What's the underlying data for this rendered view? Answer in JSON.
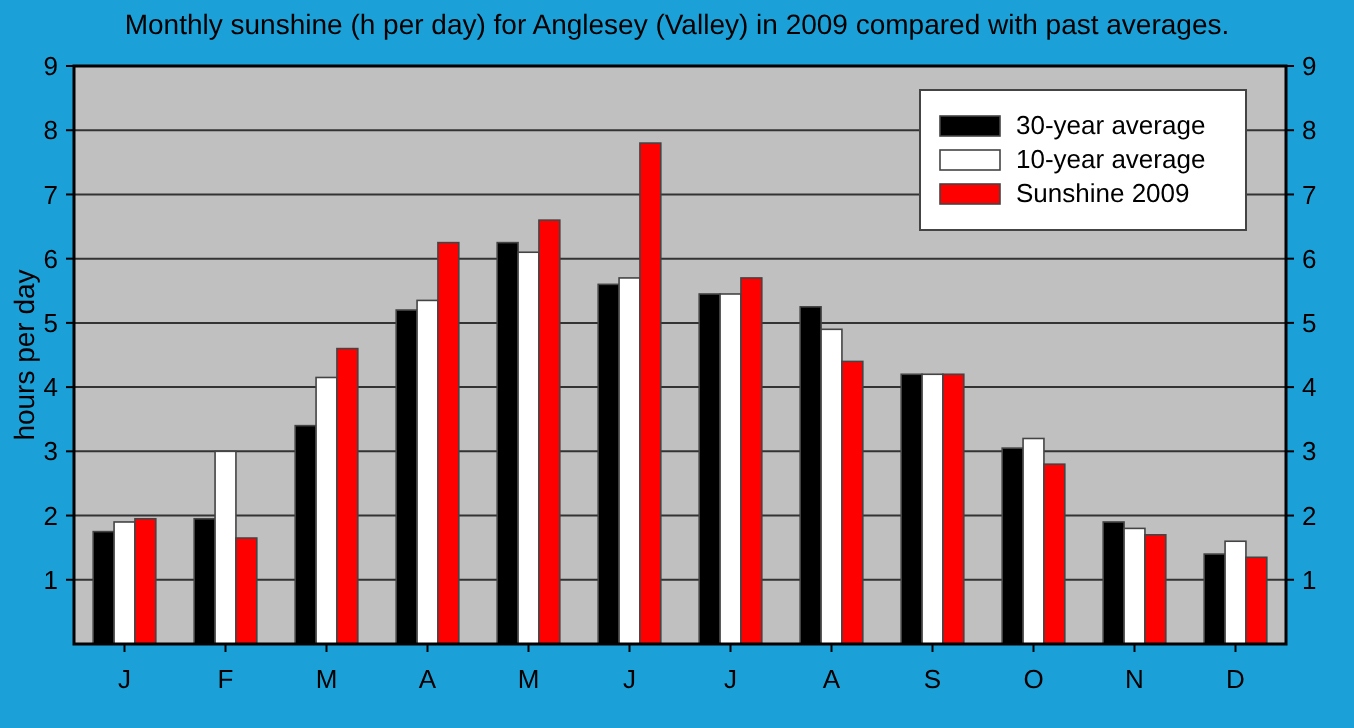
{
  "chart_data": {
    "type": "bar",
    "title": "Monthly sunshine (h per day) for Anglesey (Valley) in 2009 compared with past averages.",
    "ylabel": "hours per day",
    "categories": [
      "J",
      "F",
      "M",
      "A",
      "M",
      "J",
      "J",
      "A",
      "S",
      "O",
      "N",
      "D"
    ],
    "series": [
      {
        "name": "30-year average",
        "color": "#000000",
        "values": [
          1.75,
          1.95,
          3.4,
          5.2,
          6.25,
          5.6,
          5.45,
          5.25,
          4.2,
          3.05,
          1.9,
          1.4
        ]
      },
      {
        "name": "10-year average",
        "color": "#ffffff",
        "values": [
          1.9,
          3.0,
          4.15,
          5.35,
          6.1,
          5.7,
          5.45,
          4.9,
          4.2,
          3.2,
          1.8,
          1.6
        ]
      },
      {
        "name": "Sunshine 2009",
        "color": "#ff0000",
        "values": [
          1.95,
          1.65,
          4.6,
          6.25,
          6.6,
          7.8,
          5.7,
          4.4,
          4.2,
          2.8,
          1.7,
          1.35
        ]
      }
    ],
    "ylim": [
      0,
      9
    ],
    "yticks": [
      1,
      2,
      3,
      4,
      5,
      6,
      7,
      8,
      9
    ],
    "y2lim": [
      0,
      9
    ],
    "y2ticks": [
      1,
      2,
      3,
      4,
      5,
      6,
      7,
      8,
      9
    ],
    "grid": "y",
    "legend": "top right"
  }
}
